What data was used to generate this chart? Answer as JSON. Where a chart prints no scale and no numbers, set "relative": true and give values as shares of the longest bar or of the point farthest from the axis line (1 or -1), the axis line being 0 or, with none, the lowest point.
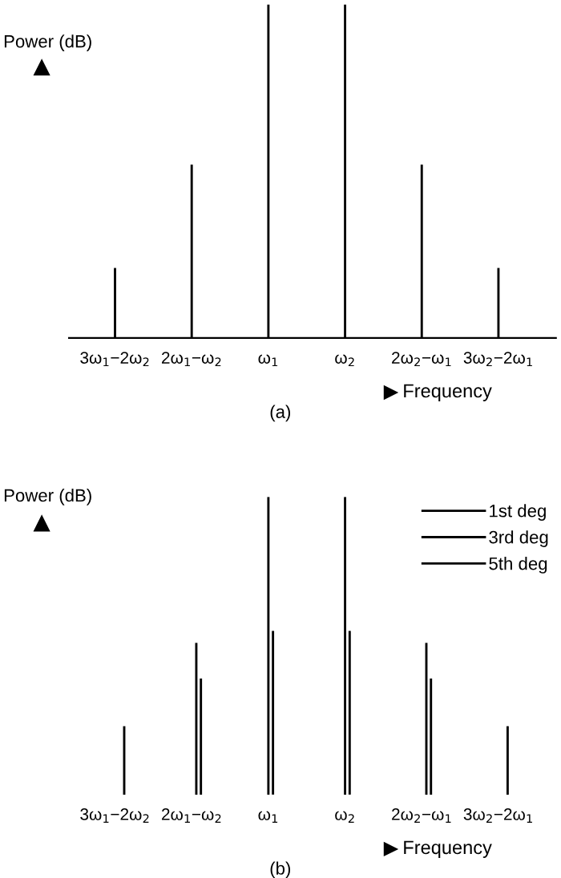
{
  "chart_data": [
    {
      "type": "bar",
      "relative": true,
      "ylabel": "Power (dB)",
      "xlabel": "Frequency",
      "annotations": [
        "(a)"
      ],
      "categories": [
        "3ω$_{1}$−2ω$_{2}$",
        "2ω$_{1}$−ω$_{2}$",
        "ω$_{1}$",
        "ω$_{2}$",
        "2ω$_{2}$−ω$_{1}$",
        "3ω$_{2}$−2ω$_{1}$"
      ],
      "series": [
        {
          "color": "#000000",
          "values": [
            0.21,
            0.52,
            1,
            1,
            0.52,
            0.21
          ]
        }
      ],
      "legend": false,
      "grid": false
    },
    {
      "type": "bar",
      "relative": true,
      "ylabel": "Power (dB)",
      "xlabel": "Frequency",
      "annotations": [
        "(b)"
      ],
      "categories": [
        "3ω$_{1}$−2ω$_{2}$",
        "2ω$_{1}$−ω$_{2}$",
        "ω$_{1}$",
        "ω$_{2}$",
        "2ω$_{2}$−ω$_{1}$",
        "3ω$_{2}$−2ω$_{1}$"
      ],
      "series": [
        {
          "name": "1st deg",
          "color": "#000000",
          "values": [
            null,
            null,
            1,
            1,
            null,
            null
          ]
        },
        {
          "name": "3rd deg",
          "color": "#000000",
          "values": [
            null,
            0.51,
            0.55,
            0.55,
            0.51,
            null
          ]
        },
        {
          "name": "5th deg",
          "color": "#000000",
          "values": [
            0.23,
            0.39,
            null,
            null,
            0.39,
            0.23
          ]
        }
      ],
      "legend": "top right",
      "grid": false
    }
  ]
}
